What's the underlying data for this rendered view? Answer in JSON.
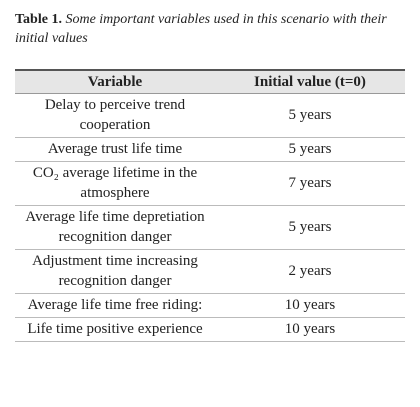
{
  "caption": {
    "label": "Table 1.",
    "text": "Some important variables used in this scenario with their initial values"
  },
  "table": {
    "header": [
      "Variable",
      "Initial value (t=0)"
    ],
    "rows": [
      [
        "Delay to perceive trend cooperation",
        "5 years"
      ],
      [
        "Average trust life time",
        "5 years"
      ],
      [
        "CO₂ average lifetime in the atmosphere",
        "7 years"
      ],
      [
        "Average life time depretiation recognition danger",
        "5 years"
      ],
      [
        "Adjustment time increasing recognition danger",
        "2 years"
      ],
      [
        "Average life time free riding:",
        "10 years"
      ],
      [
        "Life time positive experience",
        "10 years"
      ]
    ]
  }
}
